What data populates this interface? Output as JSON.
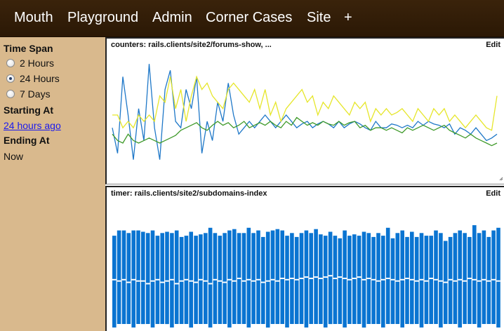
{
  "nav": {
    "items": [
      {
        "label": "Mouth"
      },
      {
        "label": "Playground"
      },
      {
        "label": "Admin"
      },
      {
        "label": "Corner Cases"
      },
      {
        "label": "Site"
      },
      {
        "label": "+"
      }
    ]
  },
  "sidebar": {
    "time_span_heading": "Time Span",
    "options": [
      {
        "label": "2 Hours",
        "checked": false
      },
      {
        "label": "24 Hours",
        "checked": true
      },
      {
        "label": "7 Days",
        "checked": false
      }
    ],
    "starting_heading": "Starting At",
    "starting_value": "24 hours ago",
    "ending_heading": "Ending At",
    "ending_value": "Now"
  },
  "panels": [
    {
      "title": "counters: rails.clients/site2/forums-show, ...",
      "edit_label": "Edit"
    },
    {
      "title": "timer: rails.clients/site2/subdomains-index",
      "edit_label": "Edit"
    }
  ],
  "colors": {
    "nav_bg": "#2f1b07",
    "sidebar_bg": "#d9b98d",
    "link": "#1a1aee",
    "series_blue": "#1f78c8",
    "series_yellow": "#e6e62a",
    "series_green": "#3f9a2a",
    "bar_blue": "#0a74d1"
  },
  "chart_data": [
    {
      "type": "line",
      "series": [
        {
          "color": "#1f78c8",
          "values": [
            60,
            80,
            20,
            50,
            85,
            45,
            70,
            10,
            60,
            85,
            30,
            15,
            55,
            60,
            30,
            45,
            20,
            80,
            55,
            70,
            40,
            55,
            25,
            50,
            65,
            60,
            55,
            60,
            55,
            50,
            55,
            60,
            55,
            50,
            55,
            60,
            57,
            55,
            60,
            57,
            55,
            57,
            60,
            55,
            60,
            57,
            55,
            57,
            60,
            62,
            55,
            60,
            60,
            57,
            58,
            60,
            58,
            60,
            55,
            58,
            55,
            57,
            58,
            60,
            57,
            65,
            60,
            62,
            65,
            60,
            65,
            70,
            68,
            65
          ]
        },
        {
          "color": "#e6e62a",
          "values": [
            50,
            50,
            60,
            55,
            60,
            50,
            55,
            50,
            55,
            35,
            40,
            20,
            45,
            30,
            55,
            35,
            20,
            30,
            25,
            35,
            40,
            45,
            30,
            25,
            30,
            35,
            40,
            30,
            45,
            30,
            50,
            40,
            55,
            45,
            40,
            35,
            30,
            40,
            35,
            50,
            40,
            45,
            35,
            40,
            45,
            50,
            40,
            45,
            40,
            55,
            45,
            50,
            45,
            50,
            48,
            45,
            50,
            55,
            45,
            50,
            55,
            45,
            50,
            45,
            55,
            50,
            55,
            60,
            55,
            50,
            55,
            60,
            62,
            35
          ]
        },
        {
          "color": "#3f9a2a",
          "values": [
            65,
            70,
            72,
            65,
            70,
            72,
            70,
            68,
            70,
            72,
            70,
            68,
            66,
            62,
            60,
            58,
            56,
            60,
            62,
            58,
            55,
            58,
            56,
            60,
            58,
            55,
            60,
            58,
            56,
            58,
            55,
            58,
            60,
            55,
            58,
            52,
            55,
            58,
            56,
            58,
            55,
            57,
            58,
            55,
            58,
            56,
            55,
            60,
            58,
            62,
            60,
            60,
            62,
            60,
            62,
            64,
            60,
            62,
            60,
            58,
            60,
            62,
            60,
            58,
            62,
            64,
            66,
            68,
            65,
            68,
            70,
            72,
            74,
            72
          ]
        }
      ]
    },
    {
      "type": "bar",
      "values": [
        62,
        66,
        66,
        64,
        66,
        66,
        65,
        64,
        66,
        62,
        64,
        65,
        64,
        66,
        61,
        62,
        65,
        62,
        63,
        64,
        68,
        64,
        62,
        64,
        66,
        67,
        64,
        64,
        68,
        64,
        66,
        61,
        65,
        66,
        67,
        66,
        62,
        64,
        61,
        64,
        66,
        64,
        67,
        63,
        62,
        65,
        62,
        60,
        66,
        62,
        63,
        62,
        65,
        64,
        61,
        64,
        62,
        68,
        60,
        64,
        66,
        61,
        65,
        61,
        64,
        62,
        62,
        66,
        64,
        58,
        61,
        64,
        66,
        64,
        61,
        70,
        64,
        66,
        61,
        66,
        68
      ],
      "medians": [
        45,
        44,
        45,
        43,
        45,
        44,
        44,
        42,
        44,
        45,
        43,
        44,
        45,
        42,
        44,
        45,
        44,
        43,
        45,
        44,
        42,
        45,
        44,
        43,
        45,
        44,
        46,
        44,
        45,
        44,
        45,
        43,
        44,
        45,
        44,
        46,
        45,
        46,
        45,
        46,
        47,
        46,
        47,
        46,
        47,
        48,
        46,
        47,
        46,
        45,
        46,
        47,
        45,
        46,
        45,
        44,
        45,
        46,
        45,
        44,
        45,
        46,
        45,
        44,
        45,
        44,
        46,
        45,
        44,
        43,
        45,
        44,
        45,
        44,
        46,
        45,
        44,
        45,
        44,
        45,
        44
      ]
    }
  ]
}
